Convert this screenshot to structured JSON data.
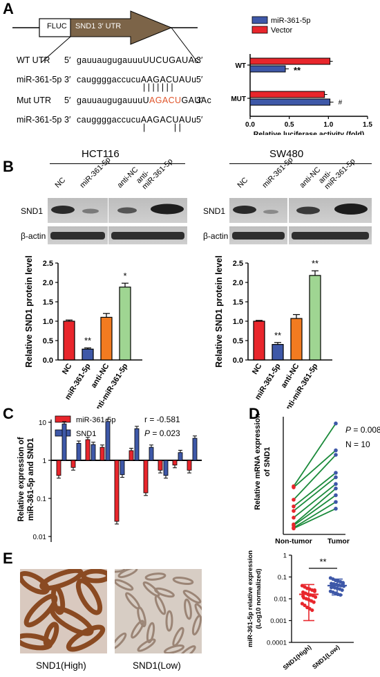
{
  "panels": {
    "A": "A",
    "B": "B",
    "C": "C",
    "D": "D",
    "E": "E"
  },
  "colors": {
    "mir": "#e8262c",
    "vector": "#e8262c",
    "mirBlue": "#3e58a8",
    "bar_red": "#e8262c",
    "bar_blue": "#3e58a8",
    "bar_orange": "#f27b20",
    "bar_green": "#9fd592",
    "pair_line": "#1a8a3a",
    "nontumor": "#e8262c",
    "tumor": "#3e58a8"
  },
  "construct": {
    "fluc": "FLUC",
    "utr": "SND1 3′ UTR"
  },
  "sequences": [
    {
      "label": "WT UTR",
      "p5": "5′",
      "base": "gauuaugugauuu",
      "site": "UUCUGAUAc",
      "p3": "3′",
      "site_class": ""
    },
    {
      "label": "miR-361-5p",
      "p5": "3′",
      "base": "cauggggaccucu",
      "site": "AAGACUAUu",
      "p3": "5′",
      "site_class": ""
    },
    {
      "label": "Mut UTR",
      "p5": "5′",
      "base": "gauuaugugauuuU",
      "site": "AGACU",
      "tail": "GAUAc",
      "p3": "3′",
      "site_class": "mut"
    },
    {
      "label": "miR-361-5p",
      "p5": "3′",
      "base": "cauggggaccucu",
      "site": "AAGACUAUu",
      "p3": "5′",
      "site_class": ""
    }
  ],
  "pairing": {
    "wt": "| | | | | | |",
    "mut": "|            | |"
  },
  "blots": {
    "hct": {
      "cell_line": "HCT116",
      "lanes": [
        "NC",
        "miR-361-5p",
        "anti-NC",
        "anti-\nmiR-361-5p"
      ],
      "rows": [
        "SND1",
        "β-actin"
      ]
    },
    "sw": {
      "cell_line": "SW480",
      "lanes": [
        "NC",
        "miR-361-5p",
        "anti-NC",
        "anti-\nmiR-361-5p"
      ],
      "rows": [
        "SND1",
        "β-actin"
      ]
    }
  },
  "tissue_captions": {
    "high": "SND1(High)",
    "low": "SND1(Low)"
  },
  "chart_data": [
    {
      "id": "A-luciferase",
      "type": "bar",
      "orientation": "horizontal",
      "categories": [
        "WT",
        "MUT"
      ],
      "series": [
        {
          "name": "miR-361-5p",
          "values": [
            0.45,
            1.02
          ]
        },
        {
          "name": "Vector",
          "values": [
            1.02,
            0.95
          ]
        }
      ],
      "xlabel": "Relative luciferase activity (fold)",
      "xlim": [
        0,
        1.5
      ],
      "xticks": [
        0.0,
        0.5,
        1.0,
        1.5
      ],
      "annotations": [
        {
          "category": "WT",
          "text": "**"
        },
        {
          "category": "MUT",
          "text": "#"
        }
      ],
      "legend": "top-right"
    },
    {
      "id": "B-HCT116",
      "type": "bar",
      "categories": [
        "NC",
        "miR-361-5p",
        "anti-NC",
        "anti-miR-361-5p"
      ],
      "values": [
        1.0,
        0.28,
        1.1,
        1.88
      ],
      "errors": [
        0.03,
        0.03,
        0.1,
        0.1
      ],
      "ylabel": "Relative SND1 protein level",
      "ylim": [
        0,
        2.5
      ],
      "yticks": [
        0.0,
        0.5,
        1.0,
        1.5,
        2.0,
        2.5
      ],
      "annotations": [
        {
          "category": "miR-361-5p",
          "text": "**"
        },
        {
          "category": "anti-miR-361-5p",
          "text": "*"
        }
      ]
    },
    {
      "id": "B-SW480",
      "type": "bar",
      "categories": [
        "NC",
        "miR-361-5p",
        "anti-NC",
        "anti-miR-361-5p"
      ],
      "values": [
        1.0,
        0.4,
        1.07,
        2.18
      ],
      "errors": [
        0.02,
        0.05,
        0.1,
        0.12
      ],
      "ylabel": "Relative SND1 protein level",
      "ylim": [
        0,
        2.5
      ],
      "yticks": [
        0.0,
        0.5,
        1.0,
        1.5,
        2.0,
        2.5
      ],
      "annotations": [
        {
          "category": "miR-361-5p",
          "text": "**"
        },
        {
          "category": "anti-miR-361-5p",
          "text": "**"
        }
      ]
    },
    {
      "id": "C-correlation",
      "type": "bar",
      "scale": "log",
      "series": [
        {
          "name": "miR-361-5p",
          "values": [
            0.4,
            0.65,
            3.5,
            2.2,
            0.025,
            1.8,
            0.14,
            0.55,
            0.75,
            0.55
          ]
        },
        {
          "name": "SND1",
          "values": [
            9.0,
            2.8,
            2.6,
            10.5,
            0.42,
            6.8,
            2.2,
            0.4,
            1.6,
            3.8
          ]
        }
      ],
      "ylabel": "Relative expression of miR-361-5p and SND1",
      "ylim": [
        0.01,
        10
      ],
      "yticks": [
        "0.01",
        "0.1",
        "1",
        "10"
      ],
      "stats": {
        "r": "r = -0.581",
        "P": "P",
        "pval": "= 0.023"
      }
    },
    {
      "id": "D-paired",
      "type": "line",
      "categories": [
        "Non-tumor",
        "Tumor"
      ],
      "pairs": [
        [
          1.9,
          4.7
        ],
        [
          1.85,
          3.5
        ],
        [
          1.3,
          3.3
        ],
        [
          1.0,
          2.5
        ],
        [
          0.8,
          2.3
        ],
        [
          0.5,
          2.0
        ],
        [
          0.2,
          1.8
        ],
        [
          0.15,
          1.5
        ],
        [
          0.05,
          1.2
        ],
        [
          0.02,
          0.9
        ]
      ],
      "ylabel": "Relative mRNA expression of SND1",
      "stats": {
        "P": "P",
        "pval": "= 0.008",
        "N": "N = 10"
      }
    },
    {
      "id": "E-scatter",
      "type": "scatter",
      "scale": "log",
      "categories": [
        "SND1(High)",
        "SND1(Low)"
      ],
      "ylabel": "miR-361-5p relative expression (Log10 normalized)",
      "ylim": [
        0.0001,
        1
      ],
      "yticks": [
        "0.0001",
        "0.001",
        "0.01",
        "0.1",
        "1"
      ],
      "groups": [
        {
          "name": "SND1(High)",
          "mean": 0.016,
          "sd_low": 0.001,
          "sd_high": 0.045,
          "points": [
            0.04,
            0.035,
            0.03,
            0.028,
            0.025,
            0.022,
            0.02,
            0.018,
            0.016,
            0.015,
            0.014,
            0.012,
            0.011,
            0.01,
            0.009,
            0.008,
            0.007,
            0.006,
            0.005,
            0.004,
            0.0035,
            0.003,
            0.025,
            0.013
          ]
        },
        {
          "name": "SND1(Low)",
          "mean": 0.04,
          "sd_low": 0.015,
          "sd_high": 0.08,
          "points": [
            0.09,
            0.08,
            0.07,
            0.065,
            0.06,
            0.055,
            0.05,
            0.048,
            0.045,
            0.042,
            0.04,
            0.038,
            0.035,
            0.032,
            0.03,
            0.028,
            0.025,
            0.022,
            0.02,
            0.018,
            0.016,
            0.015,
            0.05,
            0.033
          ]
        }
      ],
      "annotation": "**"
    }
  ]
}
